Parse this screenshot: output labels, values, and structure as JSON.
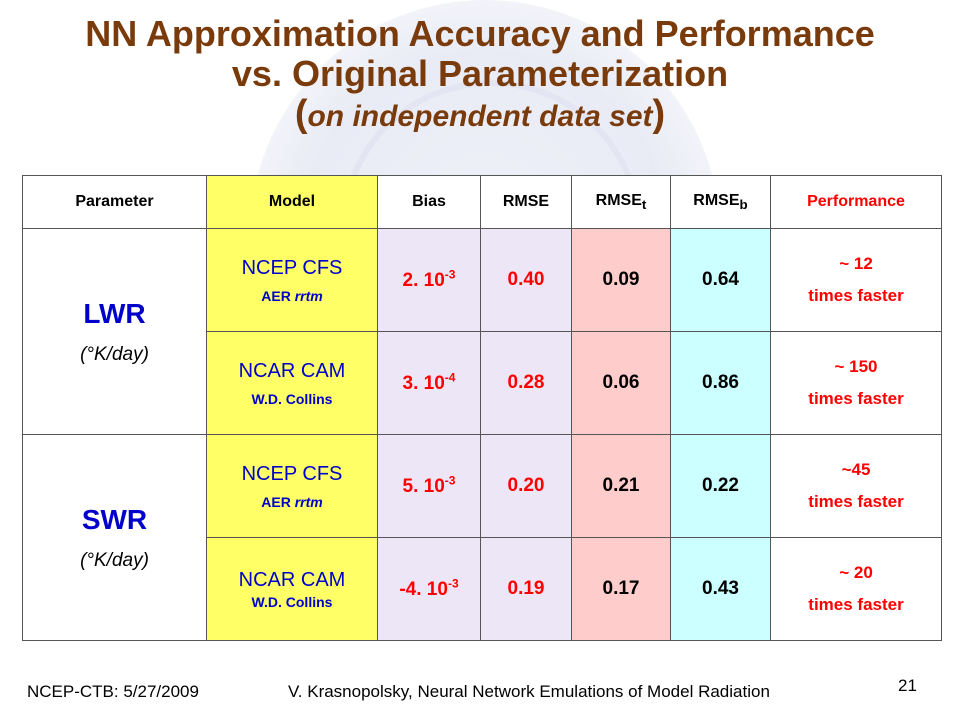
{
  "title": {
    "line1": "NN Approximation Accuracy and Performance",
    "line2": "vs. Original Parameterization",
    "line3_open": "(",
    "line3_text": "on independent data set",
    "line3_close": ")"
  },
  "table": {
    "headers": {
      "parameter": "Parameter",
      "model": "Model",
      "bias": "Bias",
      "rmse": "RMSE",
      "rmse_t_base": "RMSE",
      "rmse_t_sub": "t",
      "rmse_b_base": "RMSE",
      "rmse_b_sub": "b",
      "performance": "Performance"
    },
    "groups": [
      {
        "parameter": "LWR",
        "unit_open": "(",
        "unit_deg": "°",
        "unit_text": "K/day)",
        "rows": [
          {
            "model_name": "NCEP CFS",
            "model_sub_a": "AER ",
            "model_sub_b": "rrtm",
            "bias_base": "2. 10",
            "bias_exp": "-3",
            "rmse": "0.40",
            "rmse_t": "0.09",
            "rmse_b": "0.64",
            "perf_line1": "~ 12",
            "perf_line2": "times faster"
          },
          {
            "model_name": "NCAR CAM",
            "model_sub_a": "W.D. Collins",
            "model_sub_b": "",
            "bias_base": "3. 10",
            "bias_exp": "-4",
            "rmse": "0.28",
            "rmse_t": "0.06",
            "rmse_b": "0.86",
            "perf_line1": "~ 150",
            "perf_line2": "times faster"
          }
        ]
      },
      {
        "parameter": "SWR",
        "unit_open": "(",
        "unit_deg": "°",
        "unit_text": "K/day)",
        "rows": [
          {
            "model_name": "NCEP CFS",
            "model_sub_a": "AER ",
            "model_sub_b": "rrtm",
            "bias_base": "5. 10",
            "bias_exp": "-3",
            "rmse": "0.20",
            "rmse_t": "0.21",
            "rmse_b": "0.22",
            "perf_line1": "~45",
            "perf_line2": "times faster"
          },
          {
            "model_name": "NCAR CAM",
            "model_sub_a": "W.D. Collins",
            "model_sub_b": "",
            "bias_base": "-4. 10",
            "bias_exp": "-3",
            "rmse": "0.19",
            "rmse_t": "0.17",
            "rmse_b": "0.43",
            "perf_line1": "~ 20",
            "perf_line2": "times faster"
          }
        ]
      }
    ]
  },
  "footer": {
    "left": "NCEP-CTB: 5/27/2009",
    "middle": "V. Krasnopolsky, Neural Network Emulations of Model Radiation",
    "page": "21"
  },
  "colors": {
    "title": "#7a3b0c",
    "model_bg": "#ffff66",
    "bias_bg": "#ede6f6",
    "rmse_t_bg": "#ffcccc",
    "rmse_b_bg": "#ccffff",
    "accent_red": "#ff0000",
    "accent_blue": "#0000cc"
  }
}
